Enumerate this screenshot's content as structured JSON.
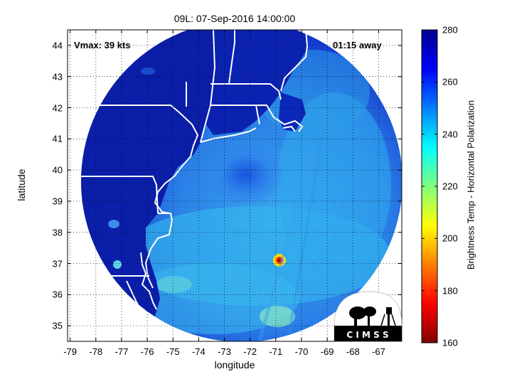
{
  "title": "09L: 07-Sep-2016 14:00:00",
  "xlabel": "longitude",
  "ylabel": "latitude",
  "colorbar_label": "Brightness Temp - Horizontal Polarization",
  "annotations": {
    "vmax": "Vmax: 39 kts",
    "time_away": "01:15 away"
  },
  "logo": {
    "text": "C I M S S"
  },
  "x_ticks": [
    "-79",
    "-78",
    "-77",
    "-76",
    "-75",
    "-74",
    "-73",
    "-72",
    "-71",
    "-70",
    "-69",
    "-68",
    "-67"
  ],
  "y_ticks": [
    "44",
    "43",
    "42",
    "41",
    "40",
    "39",
    "38",
    "37",
    "36",
    "35"
  ],
  "colorbar_ticks": [
    "280",
    "260",
    "240",
    "220",
    "200",
    "180",
    "160"
  ],
  "map_data": {
    "type": "satellite-map",
    "xlim": [
      -79.1,
      -66.1
    ],
    "ylim": [
      34.5,
      44.5
    ],
    "colormap": "jet",
    "clim": [
      160,
      280
    ],
    "grid": true,
    "storm_center": {
      "lon": -72.5,
      "lat": 39.7
    },
    "cold_spot": {
      "lon": -70.9,
      "lat": 37.0,
      "value": 165
    }
  }
}
